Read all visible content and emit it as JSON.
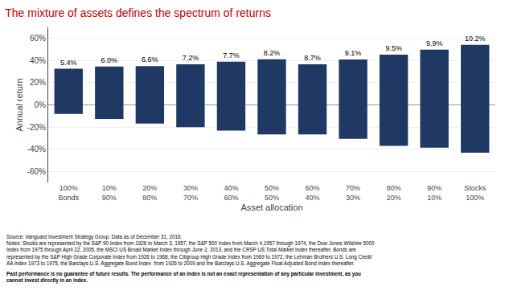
{
  "chart_data": {
    "type": "bar",
    "title": "The mixture of assets defines the spectrum of returns",
    "categories": [
      "100%\nBonds",
      "10%\n90%",
      "20%\n80%",
      "30%\n70%",
      "40%\n60%",
      "50%\n50%",
      "60%\n40%",
      "70%\n30%",
      "80%\n20%",
      "90%\n10%",
      "Stocks\n100%"
    ],
    "low": [
      -8.1,
      -12.7,
      -16.9,
      -20.1,
      -23.2,
      -26.6,
      -26.6,
      -30.7,
      -37.0,
      -38.6,
      -43.1
    ],
    "high": [
      32.6,
      34.7,
      35.0,
      36.7,
      38.9,
      41.2,
      36.7,
      41.0,
      45.4,
      49.8,
      54.2
    ],
    "bar_labels": [
      "5.4%",
      "6.0%",
      "6.6%",
      "7.2%",
      "7.7%",
      "8.2%",
      "8.7%",
      "9.1%",
      "9.5%",
      "9.9%",
      "10.2%"
    ],
    "color": "#1F3864",
    "xlabel": "Asset allocation",
    "ylabel": "Annual return",
    "ylim": [
      -70,
      70
    ],
    "yticks": [
      {
        "value": -60,
        "label": "-60%"
      },
      {
        "value": -40,
        "label": "-40%"
      },
      {
        "value": -20,
        "label": "-20%"
      },
      {
        "value": 0,
        "label": "0%"
      },
      {
        "value": 20,
        "label": "20%"
      },
      {
        "value": 40,
        "label": "40%"
      },
      {
        "value": 60,
        "label": "60%"
      }
    ],
    "grid": true,
    "annotations": [
      "Source: Vanguard Investment Strategy Group. Data as of December 31, 2016.\nNotes: Stocks are represented by the S&P 90 Index from 1926 to March 3, 1957, the S&P 500 Index from March 4,1957 through 1974, the Dow Jones Wilshire 5000\nIndex from 1975 through April 22, 2005, the MSCI US Broad Market Index through June 2, 2013, and the CRSP US Total Market Index thereafter. Bonds are\nrepresented by the S&P High Grade Corporate Index from 1926 to 1968, the Citigroup High Grade Index from 1969 to 1972, the Lehman Brothers U.S. Long Credit\nAA Index 1973 to 1975, the Barclays U.S. Aggregate Bond Index  from 1926 to 2009 and the Barclays U.S. Aggregate Float Adjusted Bond Index thereafter.",
      "Past performance is no guarantee of future results. The performance of an index is not an exact representation of any particular investment, as you\ncannot invest directly in an index."
    ]
  }
}
